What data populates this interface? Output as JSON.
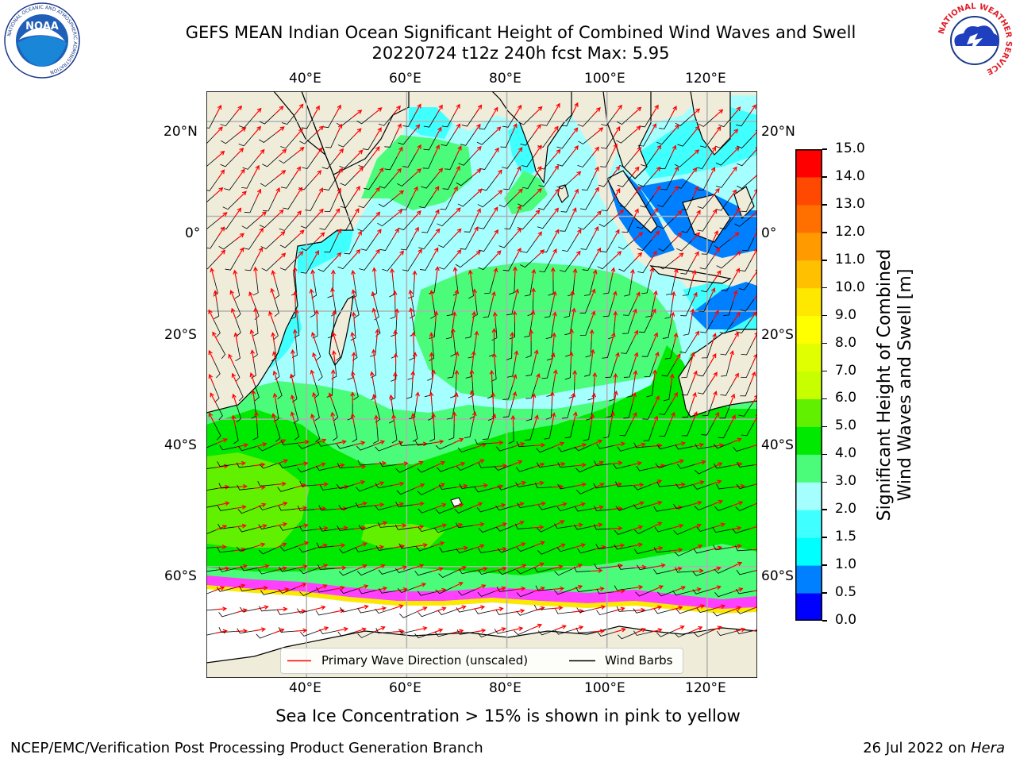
{
  "header": {
    "title_line1": "GEFS MEAN Indian Ocean Significant Height of Combined Wind Waves and Swell",
    "title_line2": "20220724 t12z 240h fcst   Max: 5.95"
  },
  "logos": {
    "left": {
      "name": "NOAA",
      "ring_text": "NATIONAL OCEANIC AND ATMOSPHERIC ADMINISTRATION",
      "bottom_text": "U.S. DEPARTMENT OF COMMERCE"
    },
    "right": {
      "ring_text": "NATIONAL WEATHER SERVICE"
    }
  },
  "map": {
    "lon_ticks": [
      "40°E",
      "60°E",
      "80°E",
      "100°E",
      "120°E"
    ],
    "lat_ticks": [
      "20°N",
      "0°",
      "20°S",
      "40°S",
      "60°S"
    ],
    "lon_values": [
      40,
      60,
      80,
      100,
      120
    ],
    "lat_values": [
      20,
      0,
      -20,
      -40,
      -60
    ],
    "extent": {
      "lon": [
        20,
        130
      ],
      "lat": [
        -70,
        26
      ]
    },
    "colors": {
      "land": "#efedda",
      "ocean_1.5_2.0": "#40ffff",
      "ocean_2.0_3.0": "#a5ffff",
      "ocean_3.0_4.0": "#4afc7a",
      "ocean_4.0_5.0": "#00e900",
      "ocean_5.0_6.0": "#60f000",
      "ice_free": "#ffffff",
      "arrow": "#ff0000",
      "barb": "#000000"
    }
  },
  "legend": {
    "items": [
      {
        "label": "Primary Wave Direction (unscaled)",
        "color": "#ff0000"
      },
      {
        "label": "Wind Barbs",
        "color": "#000000"
      }
    ]
  },
  "colorbar": {
    "title_line1": "Significant Height of Combined",
    "title_line2": "Wind Waves and Swell [m]",
    "ticks": [
      "0.0",
      "0.5",
      "1.0",
      "1.5",
      "2.0",
      "3.0",
      "4.0",
      "5.0",
      "6.0",
      "7.0",
      "8.0",
      "9.0",
      "10.0",
      "11.0",
      "12.0",
      "13.0",
      "14.0",
      "15.0"
    ],
    "colors": [
      "#0000ff",
      "#0080ff",
      "#00ffff",
      "#40ffff",
      "#a5ffff",
      "#4afc7a",
      "#00e900",
      "#60f000",
      "#c8ff00",
      "#e0ff00",
      "#ffff00",
      "#ffe800",
      "#ffc000",
      "#ff9a00",
      "#ff7000",
      "#ff4800",
      "#ff0000"
    ]
  },
  "notes": {
    "ice": "Sea Ice Concentration > 15% is shown in pink to yellow"
  },
  "footer": {
    "left": "NCEP/EMC/Verification Post Processing Product Generation Branch",
    "date": "26 Jul 2022 on ",
    "host": "Hera"
  }
}
